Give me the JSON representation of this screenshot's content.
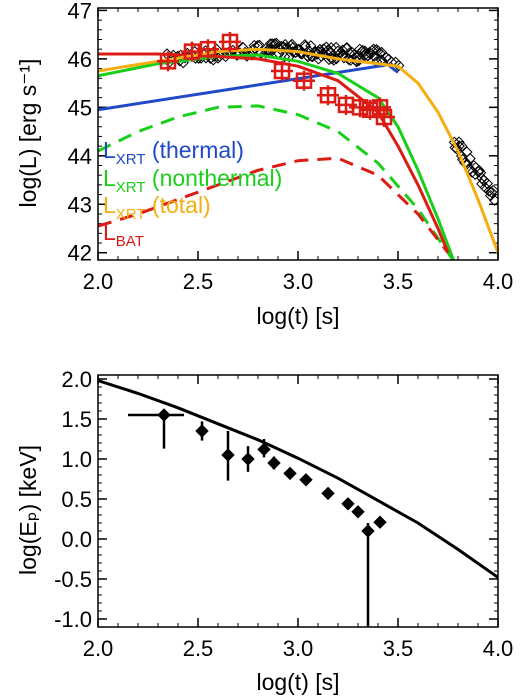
{
  "colors": {
    "thermal": "#1f49c9",
    "nonthermal": "#19cf19",
    "total": "#f5ae10",
    "bat": "#dc1c14",
    "data": "#000000"
  },
  "chart_data": [
    {
      "type": "line",
      "xlabel": "log(t) [s]",
      "ylabel": "log(L) [erg s⁻¹]",
      "xlim": [
        2.0,
        4.0
      ],
      "ylim": [
        41.85,
        47.05
      ],
      "xticks": [
        "2.0",
        "2.5",
        "3.0",
        "3.5",
        "4.0"
      ],
      "yticks": [
        "42",
        "43",
        "44",
        "45",
        "46",
        "47"
      ],
      "legend": {
        "position": "left",
        "entries": [
          {
            "main": "L",
            "sub": "XRT",
            "suffix": " (thermal)",
            "color_key": "thermal"
          },
          {
            "main": "L",
            "sub": "XRT",
            "suffix": " (nonthermal)",
            "color_key": "nonthermal"
          },
          {
            "main": "L",
            "sub": "XRT",
            "suffix": " (total)",
            "color_key": "total"
          },
          {
            "main": "L",
            "sub": "BAT",
            "suffix": "",
            "color_key": "bat"
          }
        ]
      },
      "series": [
        {
          "color_key": "thermal",
          "style": "solid",
          "x": [
            2.0,
            3.45,
            3.5
          ],
          "y": [
            44.95,
            45.88,
            45.72
          ]
        },
        {
          "color_key": "nonthermal",
          "style": "solid",
          "x": [
            2.0,
            2.3,
            2.6,
            2.8,
            3.0,
            3.2,
            3.4,
            3.5,
            3.6,
            3.7,
            3.8
          ],
          "y": [
            45.65,
            45.9,
            46.05,
            46.08,
            45.95,
            45.7,
            45.2,
            44.6,
            43.7,
            42.7,
            41.6
          ]
        },
        {
          "color_key": "nonthermal",
          "style": "dashed",
          "x": [
            2.0,
            2.2,
            2.4,
            2.6,
            2.8,
            3.0,
            3.2,
            3.4,
            3.6,
            3.8
          ],
          "y": [
            44.1,
            44.5,
            44.8,
            45.0,
            45.03,
            44.85,
            44.5,
            43.85,
            42.9,
            41.7
          ]
        },
        {
          "color_key": "bat",
          "style": "solid",
          "x": [
            2.0,
            2.3,
            2.6,
            2.8,
            3.0,
            3.2,
            3.4,
            3.5,
            3.6,
            3.7,
            3.75
          ],
          "y": [
            46.1,
            46.1,
            46.05,
            46.0,
            45.85,
            45.55,
            44.9,
            44.2,
            43.4,
            42.5,
            42.0
          ]
        },
        {
          "color_key": "bat",
          "style": "dashed",
          "x": [
            2.0,
            2.2,
            2.4,
            2.6,
            2.8,
            3.0,
            3.2,
            3.4,
            3.6,
            3.75
          ],
          "y": [
            42.55,
            42.8,
            43.1,
            43.4,
            43.7,
            43.9,
            43.95,
            43.6,
            42.8,
            42.0
          ]
        },
        {
          "color_key": "total",
          "style": "solid",
          "x": [
            2.0,
            2.3,
            2.6,
            2.8,
            3.0,
            3.2,
            3.4,
            3.5,
            3.6,
            3.7,
            3.8,
            3.9,
            4.0
          ],
          "y": [
            45.75,
            45.95,
            46.15,
            46.2,
            46.15,
            46.0,
            45.9,
            45.85,
            45.5,
            44.9,
            44.1,
            43.1,
            42.0
          ]
        }
      ],
      "bat_squares": {
        "color_key": "bat",
        "x": [
          2.35,
          2.47,
          2.55,
          2.66,
          2.92,
          3.03,
          3.15,
          3.24,
          3.31,
          3.36,
          3.41,
          3.43
        ],
        "y": [
          45.95,
          46.15,
          46.2,
          46.35,
          45.75,
          45.55,
          45.25,
          45.05,
          45.0,
          44.95,
          45.0,
          44.8
        ]
      },
      "xrt_points": {
        "color_key": "data",
        "ranges": [
          {
            "x_from": 2.35,
            "x_to": 2.85,
            "y_start": 46.0,
            "y_end": 46.2,
            "count": 55,
            "scatter": 0.12
          },
          {
            "x_from": 2.85,
            "x_to": 3.42,
            "y_start": 46.2,
            "y_end": 46.05,
            "count": 90,
            "scatter": 0.14
          },
          {
            "x_from": 3.42,
            "x_to": 3.5,
            "y_start": 46.0,
            "y_end": 45.9,
            "count": 6,
            "scatter": 0.08
          },
          {
            "x_from": 3.78,
            "x_to": 3.98,
            "y_start": 44.3,
            "y_end": 43.2,
            "count": 30,
            "scatter": 0.15
          }
        ]
      }
    },
    {
      "type": "scatter",
      "xlabel": "log(t) [s]",
      "ylabel": "log(Eₚ) [keV]",
      "xlim": [
        2.0,
        4.0
      ],
      "ylim": [
        -1.1,
        2.05
      ],
      "xticks": [
        "2.0",
        "2.5",
        "3.0",
        "3.5",
        "4.0"
      ],
      "yticks": [
        "2.0",
        "1.5",
        "1.0",
        "0.5",
        "0.0",
        "-0.5",
        "-1.0"
      ],
      "model": {
        "color_key": "data",
        "x": [
          2.0,
          2.2,
          2.4,
          2.6,
          2.8,
          3.0,
          3.2,
          3.4,
          3.6,
          3.8,
          4.0
        ],
        "y": [
          1.98,
          1.82,
          1.64,
          1.44,
          1.24,
          1.01,
          0.76,
          0.48,
          0.2,
          -0.13,
          -0.48
        ]
      },
      "points": [
        {
          "x": 2.33,
          "y": 1.55,
          "xerr_lo": 0.18,
          "xerr_hi": 0.1,
          "yerr_lo": 0.42,
          "yerr_hi": 0.05
        },
        {
          "x": 2.52,
          "y": 1.35,
          "yerr_lo": 0.12,
          "yerr_hi": 0.12
        },
        {
          "x": 2.65,
          "y": 1.05,
          "yerr_lo": 0.32,
          "yerr_hi": 0.3
        },
        {
          "x": 2.75,
          "y": 1.0,
          "yerr_lo": 0.16,
          "yerr_hi": 0.16
        },
        {
          "x": 2.83,
          "y": 1.12,
          "yerr_lo": 0.1,
          "yerr_hi": 0.13
        },
        {
          "x": 2.88,
          "y": 0.95,
          "yerr_lo": 0.08,
          "yerr_hi": 0.08
        },
        {
          "x": 2.96,
          "y": 0.82,
          "yerr_lo": 0.06,
          "yerr_hi": 0.06
        },
        {
          "x": 3.04,
          "y": 0.74,
          "yerr_lo": 0.05,
          "yerr_hi": 0.05
        },
        {
          "x": 3.15,
          "y": 0.57,
          "yerr_lo": 0.04,
          "yerr_hi": 0.04
        },
        {
          "x": 3.25,
          "y": 0.44,
          "yerr_lo": 0.04,
          "yerr_hi": 0.04
        },
        {
          "x": 3.3,
          "y": 0.34,
          "yerr_lo": 0.04,
          "yerr_hi": 0.04
        },
        {
          "x": 3.35,
          "y": 0.1,
          "yerr_lo": 1.3,
          "yerr_hi": 0.1
        },
        {
          "x": 3.41,
          "y": 0.21,
          "yerr_lo": 0.06,
          "yerr_hi": 0.06
        }
      ]
    }
  ]
}
